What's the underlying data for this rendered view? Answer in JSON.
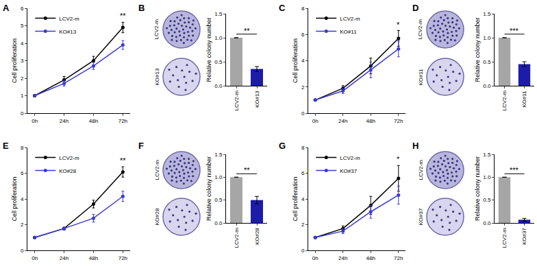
{
  "chart_data": [
    {
      "panel": "A",
      "type": "line",
      "categories": [
        "0h",
        "24h",
        "48h",
        "72h"
      ],
      "y_label": "Cell proliferation",
      "ylim": [
        0,
        6
      ],
      "yticks": [
        0,
        1,
        2,
        3,
        4,
        5,
        6
      ],
      "grid": false,
      "legend": "upper left",
      "marker": "circle",
      "series": [
        {
          "name": "LCV2-m",
          "color": "#000000",
          "values": [
            1,
            1.9,
            3.0,
            4.9
          ],
          "errors": [
            0.05,
            0.2,
            0.25,
            0.3
          ]
        },
        {
          "name": "KO#13",
          "color": "#3a3ad6",
          "values": [
            1,
            1.7,
            2.7,
            3.9
          ],
          "errors": [
            0.05,
            0.15,
            0.2,
            0.25
          ]
        }
      ],
      "annotations": [
        {
          "text": "**",
          "category": "72h"
        }
      ]
    },
    {
      "panel": "B",
      "type": "bar",
      "categories": [
        "LCV2-m",
        "KO#13"
      ],
      "y_label": "Relative colony number",
      "values": [
        1,
        0.35
      ],
      "errors": [
        0,
        0.05
      ],
      "colors": [
        "#a6a6a6",
        "#1c1ca8"
      ],
      "ylim": [
        0,
        1.5
      ],
      "yticks": [
        {
          "value": 0,
          "label": "0.0"
        },
        0.5,
        {
          "value": 1,
          "label": "1.0"
        },
        1.5
      ],
      "grid": false,
      "annotations": [
        {
          "text": "**"
        }
      ]
    },
    {
      "panel": "C",
      "type": "line",
      "categories": [
        "0h",
        "24h",
        "48h",
        "72h"
      ],
      "y_label": "Cell proliferation",
      "ylim": [
        0,
        8
      ],
      "yticks": [
        0,
        2,
        4,
        6,
        8
      ],
      "grid": false,
      "legend": "upper left",
      "marker": "circle",
      "series": [
        {
          "name": "LCV2-m",
          "color": "#000000",
          "values": [
            1,
            1.9,
            3.6,
            5.7
          ],
          "errors": [
            0.05,
            0.2,
            0.6,
            0.6
          ]
        },
        {
          "name": "KO#11",
          "color": "#3a3ad6",
          "values": [
            1,
            1.7,
            3.3,
            4.9
          ],
          "errors": [
            0.05,
            0.2,
            0.6,
            0.6
          ]
        }
      ],
      "annotations": [
        {
          "text": "*",
          "category": "72h"
        }
      ]
    },
    {
      "panel": "D",
      "type": "bar",
      "categories": [
        "LCV2-m",
        "KO#11"
      ],
      "y_label": "Relative colony number",
      "values": [
        1,
        0.45
      ],
      "errors": [
        0,
        0.05
      ],
      "colors": [
        "#a6a6a6",
        "#1c1ca8"
      ],
      "ylim": [
        0,
        1.5
      ],
      "yticks": [
        {
          "value": 0,
          "label": "0.0"
        },
        0.5,
        {
          "value": 1,
          "label": "1.0"
        },
        1.5
      ],
      "grid": false,
      "annotations": [
        {
          "text": "***"
        }
      ]
    },
    {
      "panel": "E",
      "type": "line",
      "categories": [
        "0h",
        "24h",
        "48h",
        "72h"
      ],
      "y_label": "Cell proliferation",
      "ylim": [
        0,
        8
      ],
      "yticks": [
        0,
        2,
        4,
        6,
        8
      ],
      "grid": false,
      "legend": "upper left",
      "marker": "circle",
      "series": [
        {
          "name": "LCV2-m",
          "color": "#000000",
          "values": [
            1,
            1.7,
            3.6,
            6.1
          ],
          "errors": [
            0.05,
            0.1,
            0.3,
            0.4
          ]
        },
        {
          "name": "KO#28",
          "color": "#3a3ad6",
          "values": [
            1,
            1.7,
            2.5,
            4.2
          ],
          "errors": [
            0.05,
            0.1,
            0.3,
            0.4
          ]
        }
      ],
      "annotations": [
        {
          "text": "**",
          "category": "72h"
        }
      ]
    },
    {
      "panel": "F",
      "type": "bar",
      "categories": [
        "LCV2-m",
        "KO#28"
      ],
      "y_label": "Relative colony number",
      "values": [
        1,
        0.5
      ],
      "errors": [
        0,
        0.08
      ],
      "colors": [
        "#a6a6a6",
        "#1c1ca8"
      ],
      "ylim": [
        0,
        1.5
      ],
      "yticks": [
        {
          "value": 0,
          "label": "0.0"
        },
        0.5,
        {
          "value": 1,
          "label": "1.0"
        },
        1.5
      ],
      "grid": false,
      "annotations": [
        {
          "text": "**"
        }
      ]
    },
    {
      "panel": "G",
      "type": "line",
      "categories": [
        "0h",
        "24h",
        "48h",
        "72h"
      ],
      "y_label": "Cell proliferation",
      "ylim": [
        0,
        8
      ],
      "yticks": [
        0,
        2,
        4,
        6,
        8
      ],
      "grid": false,
      "legend": "upper left",
      "marker": "circle",
      "series": [
        {
          "name": "LCV2-m",
          "color": "#000000",
          "values": [
            1,
            1.7,
            3.5,
            5.6
          ],
          "errors": [
            0.05,
            0.2,
            0.7,
            1.0
          ]
        },
        {
          "name": "KO#37",
          "color": "#3a3ad6",
          "values": [
            1,
            1.5,
            3.0,
            4.3
          ],
          "errors": [
            0.05,
            0.2,
            0.5,
            0.7
          ]
        }
      ],
      "annotations": [
        {
          "text": "*",
          "category": "72h"
        }
      ]
    },
    {
      "panel": "H",
      "type": "bar",
      "categories": [
        "LCV2-m",
        "KO#37"
      ],
      "y_label": "Relative colony number",
      "values": [
        1,
        0.07
      ],
      "errors": [
        0,
        0.03
      ],
      "colors": [
        "#a6a6a6",
        "#1c1ca8"
      ],
      "ylim": [
        0,
        1.5
      ],
      "yticks": [
        {
          "value": 0,
          "label": "0.0"
        },
        0.5,
        {
          "value": 1,
          "label": "1.0"
        },
        1.5
      ],
      "grid": false,
      "annotations": [
        {
          "text": "***"
        }
      ]
    }
  ]
}
